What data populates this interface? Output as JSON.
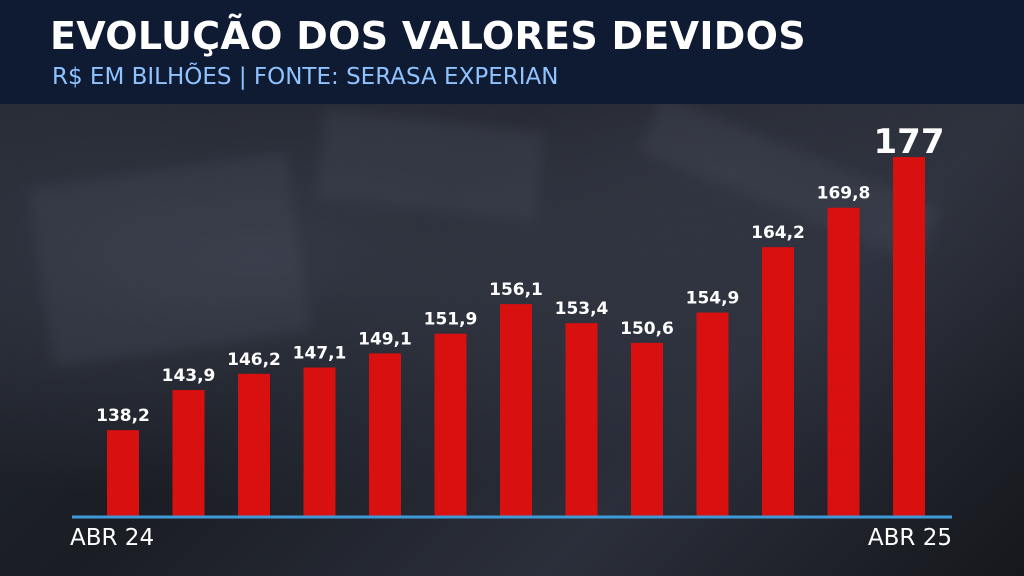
{
  "header": {
    "title": "EVOLUÇÃO DOS VALORES DEVIDOS",
    "subtitle": "R$ EM BILHÕES | FONTE: SERASA EXPERIAN"
  },
  "colors": {
    "bar": "#d81010",
    "axis": "#3f9ad8",
    "header_bg": "#0f1a33",
    "subtitle": "#8fc3ff",
    "text": "#ffffff"
  },
  "chart_data": {
    "type": "bar",
    "title": "EVOLUÇÃO DOS VALORES DEVIDOS",
    "subtitle": "R$ EM BILHÕES | FONTE: SERASA EXPERIAN",
    "values": [
      138.2,
      143.9,
      146.2,
      147.1,
      149.1,
      151.9,
      156.1,
      153.4,
      150.6,
      154.9,
      164.2,
      169.8,
      177
    ],
    "value_labels": [
      "138,2",
      "143,9",
      "146,2",
      "147,1",
      "149,1",
      "151,9",
      "156,1",
      "153,4",
      "150,6",
      "154,9",
      "164,2",
      "169,8",
      "177"
    ],
    "x_tick_labels": [
      {
        "index": 0,
        "label": "ABR 24"
      },
      {
        "index": 12,
        "label": "ABR 25"
      }
    ],
    "ylim": [
      126,
      178
    ],
    "grid": false,
    "legend": "none"
  }
}
